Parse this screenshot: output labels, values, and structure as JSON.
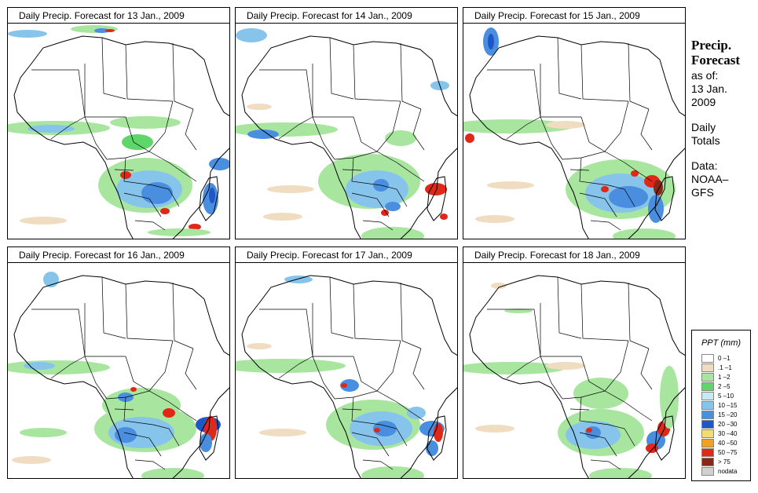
{
  "panels": [
    {
      "title": "Daily Precip. Forecast for  13 Jan., 2009"
    },
    {
      "title": "Daily Precip. Forecast for  14 Jan., 2009"
    },
    {
      "title": "Daily Precip. Forecast for  15 Jan., 2009"
    },
    {
      "title": "Daily Precip. Forecast for  16 Jan., 2009"
    },
    {
      "title": "Daily Precip. Forecast for  17 Jan., 2009"
    },
    {
      "title": "Daily Precip. Forecast for  18 Jan., 2009"
    }
  ],
  "sidebar": {
    "heading1": "Precip.",
    "heading2": "Forecast",
    "asof": "as of:",
    "date1": "13 Jan.",
    "date2": "2009",
    "daily1": "Daily",
    "daily2": "Totals",
    "data1": "Data:",
    "data2": "NOAA–",
    "data3": "GFS"
  },
  "legend": {
    "title": "PPT (mm)",
    "items": [
      {
        "label": "0 –1",
        "color": "#ffffff"
      },
      {
        "label": ".1 –1",
        "color": "#f0dcc0"
      },
      {
        "label": "1 –2",
        "color": "#a8e6a0"
      },
      {
        "label": "2 –5",
        "color": "#5ed66a"
      },
      {
        "label": "5 –10",
        "color": "#c8e8f4"
      },
      {
        "label": "10 –15",
        "color": "#86c4ec"
      },
      {
        "label": "15 –20",
        "color": "#4a8ee0"
      },
      {
        "label": "20 –30",
        "color": "#1f56c8"
      },
      {
        "label": "30 –40",
        "color": "#f4dc70"
      },
      {
        "label": "40 –50",
        "color": "#f2a020"
      },
      {
        "label": "50 –75",
        "color": "#e02818"
      },
      {
        "label": "> 75",
        "color": "#8a2818"
      },
      {
        "label": "nodata",
        "color": "#d0d0d0"
      }
    ]
  }
}
